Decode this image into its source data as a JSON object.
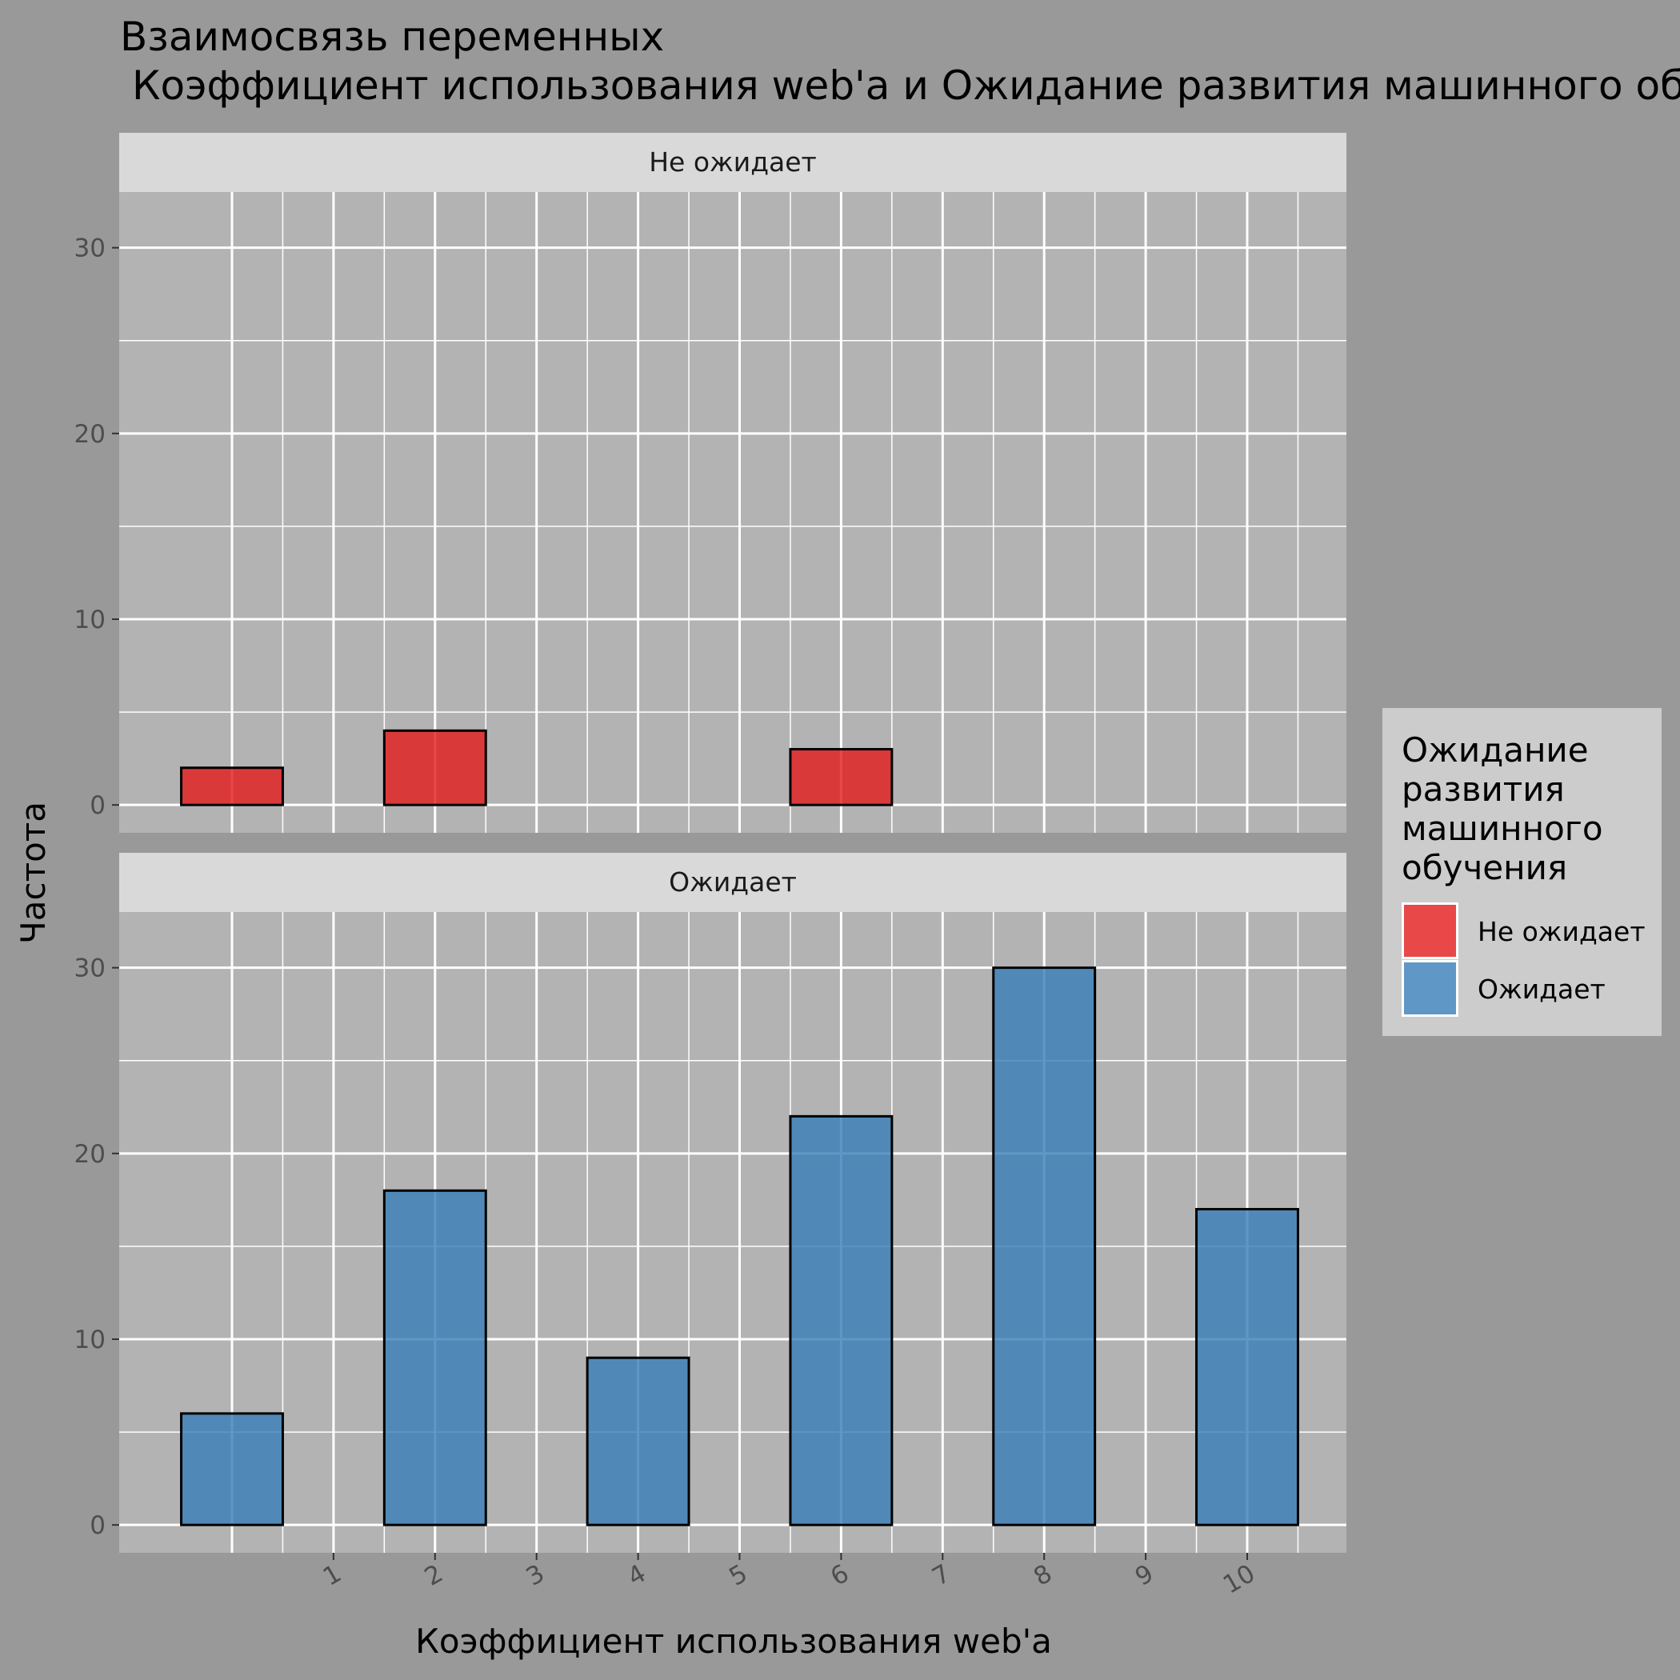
{
  "chart_data": {
    "type": "bar",
    "title": "Взаимосвязь переменных",
    "subtitle": "Коэффициент использования web'a и Ожидание развития машинного об",
    "xlabel": "Коэффициент использования web'a",
    "ylabel": "Частота",
    "ylim": [
      -1.5,
      33
    ],
    "y_ticks": [
      0,
      10,
      20,
      30
    ],
    "x_ticks": [
      1,
      2,
      3,
      4,
      5,
      6,
      7,
      8,
      9,
      10
    ],
    "xlim": [
      -1,
      11.1
    ],
    "x_tick_labels": [
      "1",
      "2",
      "3",
      "4",
      "5",
      "6",
      "7",
      "8",
      "9",
      "10"
    ],
    "grid": true,
    "legend": {
      "title": "Ожидание развития машинного обучения",
      "title_lines": [
        "Ожидание",
        "развития",
        "машинного",
        "обучения"
      ],
      "placement": "right",
      "items": [
        {
          "label": "Не ожидает",
          "color": "#E41A1C"
        },
        {
          "label": "Ожидает",
          "color": "#377EB8"
        }
      ]
    },
    "facets": [
      {
        "label": "Не ожидает",
        "color": "#E41A1C",
        "bars": [
          {
            "x0": -0.5,
            "x1": 0.5,
            "value": 2
          },
          {
            "x0": 0.5,
            "x1": 1.5,
            "value": 0
          },
          {
            "x0": 1.5,
            "x1": 2.5,
            "value": 4
          },
          {
            "x0": 2.5,
            "x1": 3.5,
            "value": 0
          },
          {
            "x0": 3.5,
            "x1": 4.5,
            "value": 0
          },
          {
            "x0": 4.5,
            "x1": 5.5,
            "value": 0
          },
          {
            "x0": 5.5,
            "x1": 6.5,
            "value": 3
          },
          {
            "x0": 6.5,
            "x1": 7.5,
            "value": 0
          },
          {
            "x0": 7.5,
            "x1": 8.5,
            "value": 0
          },
          {
            "x0": 8.5,
            "x1": 9.5,
            "value": 0
          },
          {
            "x0": 9.5,
            "x1": 10.5,
            "value": 0
          }
        ]
      },
      {
        "label": "Ожидает",
        "color": "#377EB8",
        "bars": [
          {
            "x0": -0.5,
            "x1": 0.5,
            "value": 6
          },
          {
            "x0": 0.5,
            "x1": 1.5,
            "value": 0
          },
          {
            "x0": 1.5,
            "x1": 2.5,
            "value": 18
          },
          {
            "x0": 2.5,
            "x1": 3.5,
            "value": 0
          },
          {
            "x0": 3.5,
            "x1": 4.5,
            "value": 9
          },
          {
            "x0": 4.5,
            "x1": 5.5,
            "value": 0
          },
          {
            "x0": 5.5,
            "x1": 6.5,
            "value": 22
          },
          {
            "x0": 6.5,
            "x1": 7.5,
            "value": 0
          },
          {
            "x0": 7.5,
            "x1": 8.5,
            "value": 30
          },
          {
            "x0": 8.5,
            "x1": 9.5,
            "value": 0
          },
          {
            "x0": 9.5,
            "x1": 10.5,
            "value": 17
          }
        ]
      }
    ]
  }
}
